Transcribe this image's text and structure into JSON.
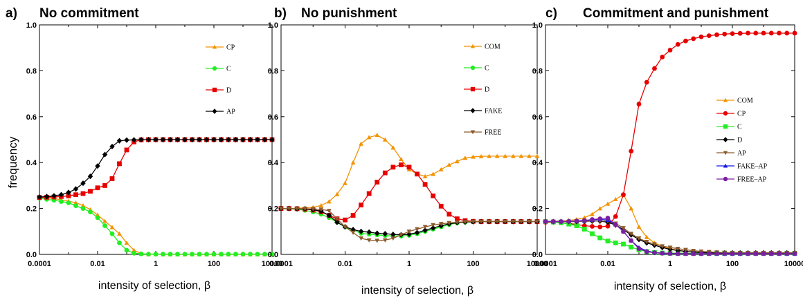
{
  "figure": {
    "ylabel": "frequency"
  },
  "chart_data": [
    {
      "type": "line",
      "panel_label": "a)",
      "title": "No commitment",
      "xlabel": "intensity of selection, β",
      "ylabel": "frequency",
      "xscale": "log",
      "xlim": [
        0.0001,
        10000
      ],
      "ylim": [
        0,
        1
      ],
      "xticks": [
        "0.0001",
        "0.01",
        "1",
        "100",
        "10000"
      ],
      "yticks": [
        "0.0",
        "0.2",
        "0.4",
        "0.6",
        "0.8",
        "1.0"
      ],
      "legend_position": "top-right",
      "x": [
        0.0001,
        0.000178,
        0.000316,
        0.000562,
        0.001,
        0.00178,
        0.00316,
        0.00562,
        0.01,
        0.0178,
        0.0316,
        0.0562,
        0.1,
        0.178,
        0.316,
        0.562,
        1,
        1.78,
        3.16,
        5.62,
        10,
        17.8,
        31.6,
        56.2,
        100,
        178,
        316,
        562,
        1000,
        1780,
        3160,
        5620,
        10000
      ],
      "series": [
        {
          "name": "CP",
          "color": "#F39200",
          "marker": "triangle",
          "values": [
            0.25,
            0.247,
            0.243,
            0.238,
            0.232,
            0.225,
            0.213,
            0.195,
            0.172,
            0.145,
            0.118,
            0.09,
            0.05,
            0.018,
            0.003,
            0.001,
            0.0005,
            0,
            0,
            0,
            0,
            0,
            0,
            0,
            0,
            0,
            0,
            0,
            0,
            0,
            0,
            0,
            0
          ]
        },
        {
          "name": "C",
          "color": "#22EE22",
          "marker": "circle",
          "values": [
            0.245,
            0.24,
            0.236,
            0.23,
            0.225,
            0.212,
            0.2,
            0.185,
            0.16,
            0.125,
            0.09,
            0.05,
            0.018,
            0.005,
            0.002,
            0.001,
            0.001,
            0.001,
            0.001,
            0.001,
            0.001,
            0.001,
            0.001,
            0.001,
            0.001,
            0.001,
            0.001,
            0.001,
            0.001,
            0.001,
            0.001,
            0.001,
            0.001
          ]
        },
        {
          "name": "D",
          "color": "#E60000",
          "marker": "square",
          "values": [
            0.248,
            0.249,
            0.25,
            0.252,
            0.255,
            0.26,
            0.265,
            0.275,
            0.29,
            0.3,
            0.33,
            0.395,
            0.455,
            0.49,
            0.499,
            0.5,
            0.5,
            0.5,
            0.5,
            0.5,
            0.5,
            0.5,
            0.5,
            0.5,
            0.5,
            0.5,
            0.5,
            0.5,
            0.5,
            0.5,
            0.5,
            0.5,
            0.5
          ]
        },
        {
          "name": "AP",
          "color": "#000000",
          "marker": "diamond",
          "values": [
            0.25,
            0.252,
            0.255,
            0.26,
            0.27,
            0.285,
            0.31,
            0.34,
            0.385,
            0.435,
            0.47,
            0.495,
            0.498,
            0.499,
            0.5,
            0.5,
            0.5,
            0.5,
            0.5,
            0.5,
            0.5,
            0.5,
            0.5,
            0.5,
            0.5,
            0.5,
            0.5,
            0.5,
            0.5,
            0.5,
            0.5,
            0.5,
            0.5
          ]
        }
      ]
    },
    {
      "type": "line",
      "panel_label": "b)",
      "title": "No punishment",
      "xlabel": "intensity of selection, β",
      "ylabel": "frequency",
      "xscale": "log",
      "xlim": [
        0.0001,
        10000
      ],
      "ylim": [
        0,
        1
      ],
      "xticks": [
        "0.0001",
        "0.01",
        "1",
        "100",
        "10000"
      ],
      "yticks": [
        "0.0",
        "0.2",
        "0.4",
        "0.6",
        "0.8",
        "1.0"
      ],
      "legend_position": "top-right",
      "x": [
        0.0001,
        0.000178,
        0.000316,
        0.000562,
        0.001,
        0.00178,
        0.00316,
        0.00562,
        0.01,
        0.0178,
        0.0316,
        0.0562,
        0.1,
        0.178,
        0.316,
        0.562,
        1,
        1.78,
        3.16,
        5.62,
        10,
        17.8,
        31.6,
        56.2,
        100,
        178,
        316,
        562,
        1000,
        1780,
        3160,
        5620,
        10000
      ],
      "series": [
        {
          "name": "COM",
          "color": "#F39200",
          "marker": "triangle",
          "values": [
            0.2,
            0.2,
            0.201,
            0.203,
            0.205,
            0.213,
            0.23,
            0.262,
            0.31,
            0.4,
            0.482,
            0.51,
            0.52,
            0.5,
            0.465,
            0.415,
            0.37,
            0.35,
            0.34,
            0.35,
            0.37,
            0.39,
            0.405,
            0.42,
            0.425,
            0.427,
            0.428,
            0.428,
            0.428,
            0.428,
            0.428,
            0.428,
            0.428
          ]
        },
        {
          "name": "C",
          "color": "#22EE22",
          "marker": "circle",
          "values": [
            0.2,
            0.199,
            0.197,
            0.192,
            0.185,
            0.175,
            0.16,
            0.14,
            0.12,
            0.105,
            0.092,
            0.088,
            0.085,
            0.082,
            0.08,
            0.08,
            0.083,
            0.09,
            0.1,
            0.11,
            0.12,
            0.13,
            0.137,
            0.14,
            0.142,
            0.143,
            0.143,
            0.143,
            0.143,
            0.143,
            0.143,
            0.143,
            0.143
          ]
        },
        {
          "name": "D",
          "color": "#E60000",
          "marker": "square",
          "values": [
            0.2,
            0.2,
            0.199,
            0.197,
            0.193,
            0.186,
            0.17,
            0.155,
            0.15,
            0.17,
            0.215,
            0.265,
            0.315,
            0.355,
            0.38,
            0.39,
            0.38,
            0.35,
            0.305,
            0.255,
            0.21,
            0.175,
            0.155,
            0.147,
            0.144,
            0.143,
            0.143,
            0.143,
            0.143,
            0.143,
            0.143,
            0.143,
            0.143
          ]
        },
        {
          "name": "FAKE",
          "color": "#000000",
          "marker": "diamond",
          "values": [
            0.2,
            0.2,
            0.199,
            0.198,
            0.195,
            0.188,
            0.17,
            0.14,
            0.12,
            0.108,
            0.1,
            0.097,
            0.092,
            0.09,
            0.087,
            0.085,
            0.088,
            0.095,
            0.105,
            0.115,
            0.125,
            0.133,
            0.138,
            0.141,
            0.142,
            0.143,
            0.143,
            0.143,
            0.143,
            0.143,
            0.143,
            0.143,
            0.143
          ]
        },
        {
          "name": "FREE",
          "color": "#8B5A2B",
          "marker": "triangle-down",
          "values": [
            0.2,
            0.2,
            0.2,
            0.199,
            0.198,
            0.196,
            0.19,
            0.155,
            0.12,
            0.095,
            0.07,
            0.062,
            0.06,
            0.062,
            0.07,
            0.085,
            0.1,
            0.11,
            0.12,
            0.128,
            0.133,
            0.137,
            0.14,
            0.142,
            0.143,
            0.143,
            0.143,
            0.143,
            0.143,
            0.143,
            0.143,
            0.143,
            0.143
          ]
        }
      ]
    },
    {
      "type": "line",
      "panel_label": "c)",
      "title": "Commitment and punishment",
      "xlabel": "intensity of selection, β",
      "ylabel": "frequency",
      "xscale": "log",
      "xlim": [
        0.0001,
        10000
      ],
      "ylim": [
        0,
        1
      ],
      "xticks": [
        "0.0001",
        "0.01",
        "1",
        "100",
        "10000"
      ],
      "yticks": [
        "0.0",
        "0.2",
        "0.4",
        "0.6",
        "0.8",
        "1.0"
      ],
      "legend_position": "right",
      "x": [
        0.0001,
        0.000178,
        0.000316,
        0.000562,
        0.001,
        0.00178,
        0.00316,
        0.00562,
        0.01,
        0.0178,
        0.0316,
        0.0562,
        0.1,
        0.178,
        0.316,
        0.562,
        1,
        1.78,
        3.16,
        5.62,
        10,
        17.8,
        31.6,
        56.2,
        100,
        178,
        316,
        562,
        1000,
        1780,
        3160,
        5620,
        10000
      ],
      "series": [
        {
          "name": "COM",
          "color": "#F39200",
          "marker": "triangle",
          "values": [
            0.143,
            0.144,
            0.145,
            0.148,
            0.152,
            0.16,
            0.175,
            0.2,
            0.22,
            0.24,
            0.26,
            0.2,
            0.12,
            0.075,
            0.05,
            0.035,
            0.025,
            0.018,
            0.013,
            0.01,
            0.008,
            0.007,
            0.006,
            0.006,
            0.006,
            0.006,
            0.006,
            0.006,
            0.006,
            0.006,
            0.006,
            0.006,
            0.006
          ]
        },
        {
          "name": "CP",
          "color": "#E60000",
          "marker": "circle",
          "values": [
            0.14,
            0.14,
            0.138,
            0.135,
            0.13,
            0.125,
            0.122,
            0.12,
            0.123,
            0.165,
            0.26,
            0.45,
            0.655,
            0.75,
            0.81,
            0.86,
            0.89,
            0.915,
            0.93,
            0.94,
            0.948,
            0.953,
            0.957,
            0.96,
            0.962,
            0.963,
            0.964,
            0.964,
            0.964,
            0.964,
            0.964,
            0.964,
            0.964
          ]
        },
        {
          "name": "C",
          "color": "#22EE22",
          "marker": "square",
          "values": [
            0.143,
            0.141,
            0.138,
            0.132,
            0.125,
            0.11,
            0.09,
            0.072,
            0.058,
            0.05,
            0.045,
            0.032,
            0.02,
            0.012,
            0.008,
            0.006,
            0.005,
            0.005,
            0.005,
            0.005,
            0.005,
            0.005,
            0.005,
            0.005,
            0.005,
            0.005,
            0.005,
            0.005,
            0.005,
            0.005,
            0.005,
            0.005,
            0.005
          ]
        },
        {
          "name": "D",
          "color": "#000000",
          "marker": "diamond",
          "values": [
            0.143,
            0.143,
            0.143,
            0.143,
            0.143,
            0.144,
            0.145,
            0.145,
            0.14,
            0.128,
            0.108,
            0.085,
            0.065,
            0.05,
            0.04,
            0.03,
            0.022,
            0.017,
            0.013,
            0.01,
            0.008,
            0.007,
            0.006,
            0.006,
            0.006,
            0.006,
            0.006,
            0.006,
            0.006,
            0.006,
            0.006,
            0.006,
            0.006
          ]
        },
        {
          "name": "AP",
          "color": "#8B5A2B",
          "marker": "triangle-down",
          "values": [
            0.143,
            0.143,
            0.143,
            0.143,
            0.143,
            0.144,
            0.145,
            0.145,
            0.145,
            0.135,
            0.115,
            0.09,
            0.07,
            0.055,
            0.045,
            0.036,
            0.03,
            0.025,
            0.02,
            0.016,
            0.013,
            0.011,
            0.009,
            0.008,
            0.007,
            0.007,
            0.007,
            0.007,
            0.007,
            0.007,
            0.007,
            0.007,
            0.007
          ]
        },
        {
          "name": "FAKE–AP",
          "color": "#1515E6",
          "marker": "triangle",
          "values": [
            0.143,
            0.143,
            0.143,
            0.144,
            0.145,
            0.147,
            0.15,
            0.152,
            0.15,
            0.13,
            0.1,
            0.06,
            0.03,
            0.015,
            0.008,
            0.005,
            0.004,
            0.003,
            0.003,
            0.003,
            0.003,
            0.003,
            0.003,
            0.003,
            0.003,
            0.003,
            0.003,
            0.003,
            0.003,
            0.003,
            0.003,
            0.003,
            0.003
          ]
        },
        {
          "name": "FREE–AP",
          "color": "#7A1FA2",
          "marker": "circle",
          "values": [
            0.143,
            0.143,
            0.143,
            0.144,
            0.146,
            0.148,
            0.152,
            0.155,
            0.158,
            0.13,
            0.1,
            0.06,
            0.025,
            0.012,
            0.007,
            0.005,
            0.004,
            0.003,
            0.003,
            0.003,
            0.003,
            0.003,
            0.003,
            0.003,
            0.003,
            0.003,
            0.003,
            0.003,
            0.003,
            0.003,
            0.003,
            0.003,
            0.003
          ]
        }
      ]
    }
  ]
}
